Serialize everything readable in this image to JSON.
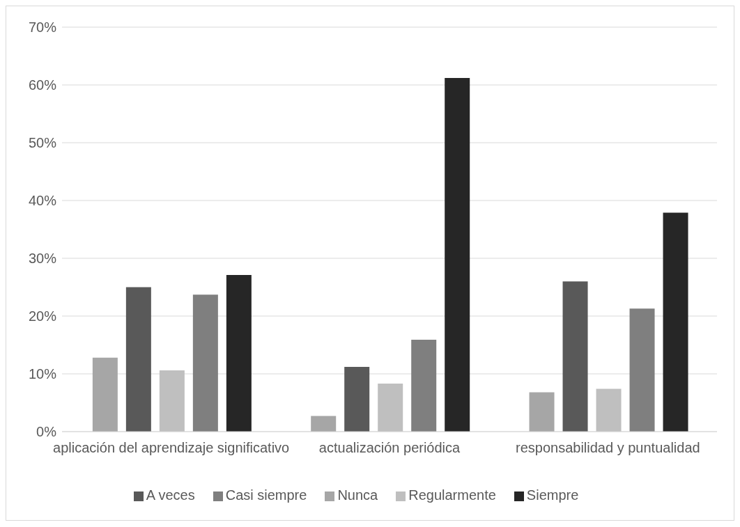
{
  "chart_data": {
    "type": "bar",
    "categories": [
      "aplicación del aprendizaje significativo",
      "actualización periódica",
      "responsabilidad y puntualidad"
    ],
    "series": [
      {
        "name": "Nunca",
        "color": "#a6a6a6",
        "values": [
          12.8,
          2.7,
          6.8
        ]
      },
      {
        "name": "A veces",
        "color": "#595959",
        "values": [
          25.0,
          11.2,
          26.0
        ]
      },
      {
        "name": "Regularmente",
        "color": "#bfbfbf",
        "values": [
          10.6,
          8.3,
          7.4
        ]
      },
      {
        "name": "Casi siempre",
        "color": "#7f7f7f",
        "values": [
          23.7,
          15.9,
          21.3
        ]
      },
      {
        "name": "Siempre",
        "color": "#262626",
        "values": [
          27.1,
          61.2,
          37.9
        ]
      }
    ],
    "ylim": [
      0,
      70
    ],
    "yticks": [
      {
        "value": 0,
        "label": "0%"
      },
      {
        "value": 10,
        "label": "10%"
      },
      {
        "value": 20,
        "label": "20%"
      },
      {
        "value": 30,
        "label": "30%"
      },
      {
        "value": 40,
        "label": "40%"
      },
      {
        "value": 50,
        "label": "50%"
      },
      {
        "value": 60,
        "label": "60%"
      },
      {
        "value": 70,
        "label": "70%"
      }
    ],
    "grid": "y",
    "legend": "bottom"
  }
}
